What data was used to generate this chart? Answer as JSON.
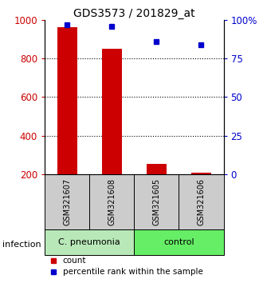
{
  "title": "GDS3573 / 201829_at",
  "samples": [
    "GSM321607",
    "GSM321608",
    "GSM321605",
    "GSM321606"
  ],
  "counts": [
    960,
    850,
    255,
    210
  ],
  "percentile_ranks": [
    97,
    96,
    86,
    84
  ],
  "group_names": [
    "C. pneumonia",
    "control"
  ],
  "group_bg_colors": [
    "#b8e8b8",
    "#66ee66"
  ],
  "bar_color": "#cc0000",
  "dot_color": "#0000cc",
  "ylim_left": [
    200,
    1000
  ],
  "ylim_right": [
    0,
    100
  ],
  "yticks_left": [
    200,
    400,
    600,
    800,
    1000
  ],
  "yticks_right": [
    0,
    25,
    50,
    75,
    100
  ],
  "ytick_labels_right": [
    "0",
    "25",
    "50",
    "75",
    "100%"
  ],
  "bar_width": 0.45,
  "background_color": "#ffffff",
  "sample_box_color": "#cccccc",
  "label_infection": "infection",
  "legend_count": "count",
  "legend_percentile": "percentile rank within the sample"
}
